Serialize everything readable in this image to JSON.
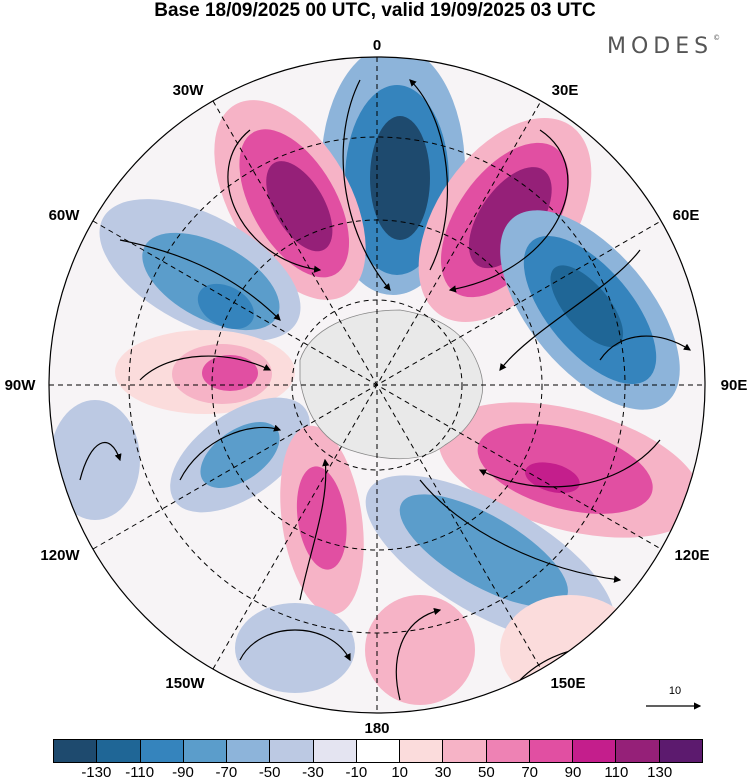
{
  "title": "Base 18/09/2025 00 UTC, valid 19/09/2025 03 UTC",
  "brand": "MODES",
  "brand_mark": "©",
  "longitude_labels": [
    {
      "id": "lon-0",
      "text": "0"
    },
    {
      "id": "lon-30e",
      "text": "30E"
    },
    {
      "id": "lon-60e",
      "text": "60E"
    },
    {
      "id": "lon-90e",
      "text": "90E"
    },
    {
      "id": "lon-120e",
      "text": "120E"
    },
    {
      "id": "lon-150e",
      "text": "150E"
    },
    {
      "id": "lon-180",
      "text": "180"
    },
    {
      "id": "lon-150w",
      "text": "150W"
    },
    {
      "id": "lon-120w",
      "text": "120W"
    },
    {
      "id": "lon-90w",
      "text": "90W"
    },
    {
      "id": "lon-60w",
      "text": "60W"
    },
    {
      "id": "lon-30w",
      "text": "30W"
    }
  ],
  "reference_vector": {
    "label": "10"
  },
  "colorbar": {
    "colors": [
      "#1e4a6e",
      "#1f6696",
      "#3584bd",
      "#5b9dcb",
      "#8db4da",
      "#bcc9e3",
      "#e4e4f1",
      "#ffffff",
      "#fbdcdc",
      "#f6b3c6",
      "#ee82b4",
      "#e14fa2",
      "#c41e8c",
      "#952078",
      "#5c1a6e"
    ],
    "tick_labels": [
      "-130",
      "-110",
      "-90",
      "-70",
      "-50",
      "-30",
      "-10",
      "10",
      "30",
      "50",
      "70",
      "90",
      "110",
      "130"
    ]
  }
}
